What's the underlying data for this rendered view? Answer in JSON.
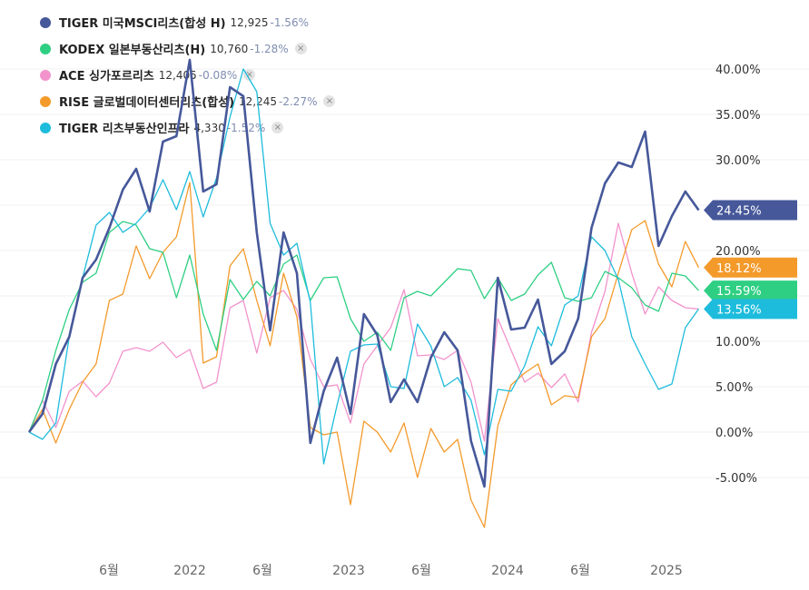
{
  "legend": [
    {
      "name": "TIGER 미국MSCI리츠(합성 H)",
      "price": "12,925",
      "change": "-1.56%",
      "color": "#46589a",
      "closable": false
    },
    {
      "name": "KODEX 일본부동산리츠(H)",
      "price": "10,760",
      "change": "-1.28%",
      "color": "#2fcf83",
      "closable": true
    },
    {
      "name": "ACE 싱가포르리츠",
      "price": "12,405",
      "change": "-0.08%",
      "color": "#f293cc",
      "closable": true
    },
    {
      "name": "RISE 글로벌데이터센터리츠(합성)",
      "price": "12,245",
      "change": "-2.27%",
      "color": "#f39a2b",
      "closable": true
    },
    {
      "name": "TIGER 리츠부동산인프라",
      "price": "4,330",
      "change": "-1.52%",
      "color": "#1ebcdc",
      "closable": true
    }
  ],
  "close_symbol": "×",
  "chart_data": {
    "type": "line",
    "x_tick_labels": [
      "6월",
      "2022",
      "6월",
      "2023",
      "6월",
      "2024",
      "6월",
      "2025"
    ],
    "y_tick_labels": [
      "40.00%",
      "35.00%",
      "30.00%",
      "25.00%",
      "20.00%",
      "15.00%",
      "10.00%",
      "5.00%",
      "0.00%",
      "-5.00%"
    ],
    "ylim": [
      -12,
      44
    ],
    "grid": true,
    "legend_position": "top-left",
    "series": [
      {
        "name": "TIGER 미국MSCI리츠(합성 H)",
        "color": "#46589a",
        "last_label": "24.45%",
        "values": [
          0.0,
          2.0,
          7.5,
          10.5,
          17.0,
          19.0,
          22.5,
          26.7,
          29.0,
          24.3,
          32.0,
          32.6,
          41.0,
          26.5,
          27.3,
          38.0,
          37.0,
          22.0,
          11.2,
          22.0,
          17.5,
          -1.2,
          4.5,
          8.2,
          2.0,
          13.0,
          10.7,
          3.3,
          5.8,
          3.3,
          8.2,
          11.0,
          9.0,
          -1.0,
          -6.0,
          17.0,
          11.3,
          11.5,
          14.6,
          7.5,
          8.9,
          12.5,
          22.5,
          27.4,
          29.7,
          29.2,
          33.1,
          20.5,
          23.8,
          26.5,
          24.45
        ]
      },
      {
        "name": "KODEX 일본부동산리츠(H)",
        "color": "#2fcf83",
        "last_label": "15.59%",
        "values": [
          0.0,
          3.5,
          9.0,
          13.5,
          16.5,
          17.5,
          22.0,
          23.2,
          22.8,
          20.2,
          19.8,
          14.8,
          19.5,
          13.0,
          9.0,
          16.8,
          14.6,
          16.6,
          15.0,
          18.5,
          19.5,
          14.5,
          17.0,
          17.1,
          12.5,
          10.0,
          11.0,
          9.0,
          14.8,
          15.5,
          15.0,
          16.5,
          18.0,
          17.8,
          14.7,
          17.0,
          14.5,
          15.2,
          17.3,
          18.7,
          14.8,
          14.4,
          14.8,
          17.7,
          17.0,
          15.9,
          14.0,
          13.3,
          17.5,
          17.2,
          15.59
        ]
      },
      {
        "name": "ACE 싱가포르리츠",
        "color": "#f293cc",
        "last_label": "13.56%",
        "values": [
          0.0,
          3.5,
          0.5,
          4.5,
          5.6,
          3.9,
          5.4,
          8.9,
          9.3,
          8.9,
          9.9,
          8.2,
          9.1,
          4.8,
          5.5,
          13.7,
          14.5,
          8.7,
          14.8,
          15.6,
          13.5,
          8.0,
          5.0,
          5.2,
          1.0,
          7.5,
          9.5,
          11.5,
          15.7,
          8.4,
          8.5,
          8.0,
          9.0,
          5.5,
          -1.0,
          12.5,
          9.0,
          5.5,
          6.5,
          4.9,
          6.4,
          3.3,
          11.0,
          15.5,
          23.0,
          17.5,
          13.0,
          16.0,
          14.5,
          13.7,
          13.56
        ]
      },
      {
        "name": "RISE 글로벌데이터센터리츠(합성)",
        "color": "#f39a2b",
        "last_label": "18.12%",
        "values": [
          0.0,
          2.5,
          -1.2,
          2.5,
          5.5,
          7.5,
          14.5,
          15.2,
          20.5,
          16.9,
          19.8,
          21.5,
          27.5,
          7.6,
          8.3,
          18.3,
          20.2,
          14.5,
          9.5,
          17.5,
          12.7,
          0.5,
          -0.3,
          0.0,
          -8.0,
          1.2,
          0.0,
          -2.2,
          1.0,
          -5.0,
          0.4,
          -2.2,
          -0.8,
          -7.5,
          -10.5,
          0.7,
          5.2,
          6.5,
          7.5,
          3.0,
          4.0,
          3.8,
          10.5,
          12.5,
          17.5,
          22.3,
          23.3,
          18.5,
          16.0,
          21.0,
          18.12
        ]
      },
      {
        "name": "TIGER 리츠부동산인프라",
        "color": "#1ebcdc",
        "last_label": "13.56%",
        "values": [
          0.0,
          -0.8,
          1.0,
          10.5,
          17.0,
          22.8,
          24.2,
          22.0,
          23.0,
          24.7,
          27.8,
          24.5,
          28.7,
          23.7,
          28.0,
          34.7,
          40.0,
          37.5,
          23.0,
          19.5,
          20.8,
          14.3,
          -3.5,
          3.0,
          8.9,
          9.6,
          9.7,
          5.0,
          4.8,
          11.9,
          9.5,
          5.0,
          6.0,
          3.5,
          -2.5,
          4.7,
          4.5,
          7.3,
          11.6,
          9.5,
          14.0,
          15.0,
          21.5,
          20.0,
          16.8,
          10.5,
          7.5,
          4.7,
          5.3,
          11.5,
          13.56
        ]
      }
    ]
  }
}
